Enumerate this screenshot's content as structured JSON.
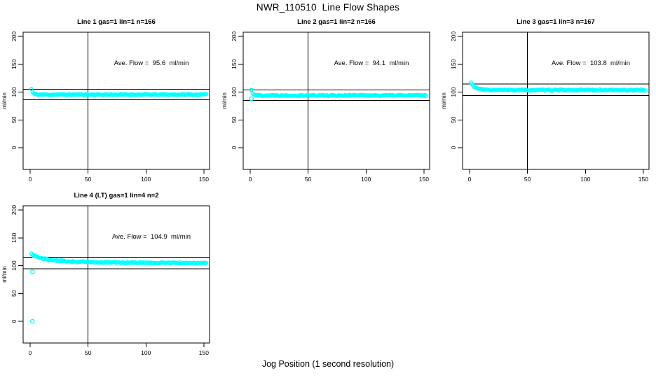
{
  "title": "NWR_110510  Line Flow Shapes",
  "x_axis_title": "Jog Position (1 second resolution)",
  "colors": {
    "background": "#FFFFFF",
    "points": "#00FFFF",
    "lines": "#000000",
    "text": "#000000"
  },
  "marker": "open-circle",
  "chart_data": [
    {
      "type": "scatter",
      "title": "Line 1 gas=1 lin=1 n=166",
      "annotation": "Ave. Flow =  95.6  ml/min",
      "ave_flow_ml_min": 95.6,
      "gas": 1,
      "lin": 1,
      "n": 166,
      "y_label": "ml/min",
      "x_ticks": [
        0,
        50,
        100,
        150
      ],
      "y_ticks": [
        0,
        50,
        100,
        150,
        200
      ],
      "x_range": [
        0,
        152
      ],
      "y_range": [
        0,
        200
      ],
      "ref_lines": {
        "upper": 105.2,
        "lower": 86.0,
        "vertical_x": 50
      },
      "series_profile": {
        "n_points": 152,
        "start": 105.5,
        "settle": 95.4,
        "tau1": 1.4,
        "amp2": 0,
        "tau2": 1,
        "noise": 1.0,
        "seed": 11
      },
      "outliers": []
    },
    {
      "type": "scatter",
      "title": "Line 2 gas=1 lin=2 n=166",
      "annotation": "Ave. Flow =  94.1  ml/min",
      "ave_flow_ml_min": 94.1,
      "gas": 1,
      "lin": 2,
      "n": 166,
      "y_label": "ml/min",
      "x_ticks": [
        0,
        50,
        100,
        150
      ],
      "y_ticks": [
        0,
        50,
        100,
        150,
        200
      ],
      "x_range": [
        0,
        152
      ],
      "y_range": [
        0,
        200
      ],
      "ref_lines": {
        "upper": 103.5,
        "lower": 84.7,
        "vertical_x": 50
      },
      "series_profile": {
        "n_points": 152,
        "start": 103.5,
        "settle": 94.0,
        "tau1": 1.4,
        "amp2": 0,
        "tau2": 1,
        "noise": 1.0,
        "seed": 22
      },
      "outliers": [
        {
          "x": 1,
          "y": 88
        }
      ]
    },
    {
      "type": "scatter",
      "title": "Line 3 gas=1 lin=3 n=167",
      "annotation": "Ave. Flow =  103.8  ml/min",
      "ave_flow_ml_min": 103.8,
      "gas": 1,
      "lin": 3,
      "n": 167,
      "y_label": "ml/min",
      "x_ticks": [
        0,
        50,
        100,
        150
      ],
      "y_ticks": [
        0,
        50,
        100,
        150,
        200
      ],
      "x_range": [
        0,
        152
      ],
      "y_range": [
        0,
        200
      ],
      "ref_lines": {
        "upper": 114.2,
        "lower": 93.4,
        "vertical_x": 50
      },
      "series_profile": {
        "n_points": 152,
        "start": 117,
        "settle": 103.5,
        "tau1": 4,
        "amp2": 0,
        "tau2": 1,
        "noise": 1.1,
        "seed": 33
      },
      "outliers": []
    },
    {
      "type": "scatter",
      "title": "Line 4 (LT) gas=1 lin=4 n=2",
      "annotation": "Ave. Flow =  104.9  ml/min",
      "ave_flow_ml_min": 104.9,
      "gas": 1,
      "lin": 4,
      "n": 2,
      "y_label": "ml/min",
      "x_ticks": [
        0,
        50,
        100,
        150
      ],
      "y_ticks": [
        0,
        50,
        100,
        150,
        200
      ],
      "x_range": [
        0,
        152
      ],
      "y_range": [
        0,
        200
      ],
      "ref_lines": {
        "upper": 115.4,
        "lower": 94.4,
        "vertical_x": 50
      },
      "series_profile": {
        "n_points": 152,
        "start": 121,
        "settle": 104,
        "tau1": 10,
        "amp2": 5,
        "tau2": 70,
        "noise": 1.2,
        "seed": 44
      },
      "outliers": [
        {
          "x": 2,
          "y": 0
        },
        {
          "x": 2,
          "y": 89
        }
      ]
    }
  ]
}
